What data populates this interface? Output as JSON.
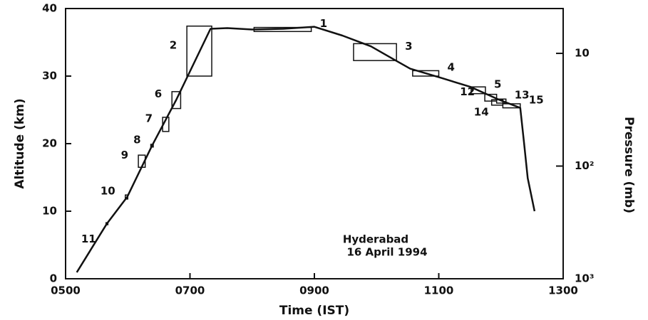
{
  "chart_data": {
    "type": "line",
    "xlabel": "Time (IST)",
    "ylabel": "Altitude (km)",
    "y2label": "Pressure (mb)",
    "annotations": [
      "Hyderabad",
      "16 April 1994"
    ],
    "xlim": [
      5,
      13
    ],
    "xticks": [
      {
        "value": 5,
        "label": "0500"
      },
      {
        "value": 7,
        "label": "0700"
      },
      {
        "value": 9,
        "label": "0900"
      },
      {
        "value": 11,
        "label": "1100"
      },
      {
        "value": 13,
        "label": "1300"
      }
    ],
    "ylim": [
      0,
      40
    ],
    "yticks": [
      0,
      10,
      20,
      30,
      40
    ],
    "y2lim": [
      1000,
      4
    ],
    "y2log": true,
    "y2ticks": [
      10,
      {
        "value": 100,
        "label": "10²"
      },
      {
        "value": 1000,
        "label": "10³"
      }
    ],
    "color": "#111111",
    "x": [
      5.18,
      5.66,
      5.99,
      6.39,
      6.78,
      7.33,
      7.6,
      8.0,
      8.5,
      9.0,
      9.45,
      9.91,
      10.31,
      10.54,
      11.05,
      11.51,
      11.97,
      12.31,
      12.37,
      12.43,
      12.54
    ],
    "values": [
      0.95,
      8.1,
      12.1,
      19.7,
      26.5,
      37.0,
      37.1,
      36.9,
      37.0,
      37.3,
      36.0,
      34.4,
      32.3,
      31.1,
      29.7,
      28.4,
      26.5,
      25.3,
      20.2,
      14.9,
      10.0
    ],
    "boxes": [
      {
        "label": "1",
        "x": [
          8.03,
          8.95
        ],
        "y": [
          36.6,
          37.2
        ]
      },
      {
        "label": "2",
        "x": [
          6.95,
          7.35
        ],
        "y": [
          30.0,
          37.4
        ]
      },
      {
        "label": "3",
        "x": [
          9.63,
          10.32
        ],
        "y": [
          32.3,
          34.8
        ]
      },
      {
        "label": "4",
        "x": [
          10.58,
          11.0
        ],
        "y": [
          30.0,
          30.8
        ]
      },
      {
        "label": "5",
        "x": [
          11.52,
          11.75
        ],
        "y": [
          27.4,
          28.4
        ]
      },
      {
        "label": "6",
        "x": [
          6.71,
          6.85
        ],
        "y": [
          25.2,
          27.7
        ]
      },
      {
        "label": "7",
        "x": [
          6.56,
          6.66
        ],
        "y": [
          21.8,
          23.9
        ]
      },
      {
        "label": "8",
        "x": [
          6.37,
          6.41
        ],
        "y": [
          19.5,
          19.9
        ]
      },
      {
        "label": "9",
        "x": [
          6.17,
          6.28
        ],
        "y": [
          16.5,
          18.3
        ]
      },
      {
        "label": "10",
        "x": [
          5.96,
          6.0
        ],
        "y": [
          11.8,
          12.4
        ]
      },
      {
        "label": "11",
        "x": [
          5.65,
          5.68
        ],
        "y": [
          8.0,
          8.3
        ]
      },
      {
        "label": "12",
        "x": [
          11.74,
          11.93
        ],
        "y": [
          26.3,
          27.3
        ]
      },
      {
        "label": "13",
        "x": [
          11.93,
          12.08
        ],
        "y": [
          26.0,
          26.6
        ]
      },
      {
        "label": "14",
        "x": [
          11.85,
          12.03
        ],
        "y": [
          25.7,
          26.5
        ]
      },
      {
        "label": "15",
        "x": [
          12.03,
          12.31
        ],
        "y": [
          25.3,
          25.9
        ]
      }
    ]
  }
}
